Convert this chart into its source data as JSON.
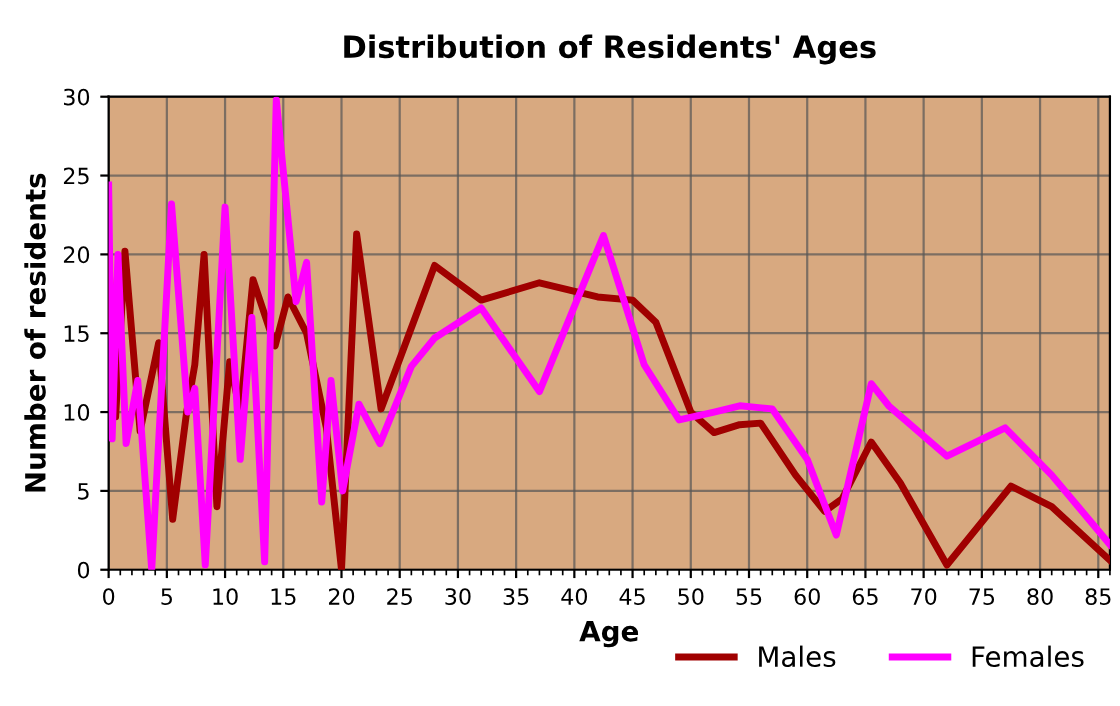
{
  "chart_data": {
    "type": "line",
    "title": "Distribution of Residents' Ages",
    "xlabel": "Age",
    "ylabel": "Number of residents",
    "xlim": [
      0,
      86
    ],
    "ylim": [
      0,
      30
    ],
    "xticks": [
      0,
      5,
      10,
      15,
      20,
      25,
      30,
      35,
      40,
      45,
      50,
      55,
      60,
      65,
      70,
      75,
      80,
      85
    ],
    "yticks": [
      0,
      5,
      10,
      15,
      20,
      25,
      30
    ],
    "grid": true,
    "legend": "bottom right",
    "marker": "none",
    "line_style": "solid",
    "series": [
      {
        "name": "Males",
        "color": "#a00000",
        "x": [
          0,
          0.6,
          1.4,
          2.7,
          4.3,
          5.5,
          6.7,
          7.4,
          8.2,
          9.3,
          10.4,
          11.3,
          12.4,
          14.3,
          15.4,
          17,
          18.7,
          20,
          21.3,
          23.4,
          28,
          32,
          37,
          42,
          45,
          47,
          50,
          52,
          54.2,
          56,
          59,
          61.5,
          63,
          65.5,
          68,
          72,
          77.5,
          81,
          86
        ],
        "values": [
          19.9,
          9.7,
          20.2,
          8.8,
          14.4,
          3.2,
          10,
          13,
          20,
          4,
          13.2,
          10,
          18.4,
          14.2,
          17.3,
          15,
          9,
          0,
          21.3,
          10.2,
          19.3,
          17.1,
          18.2,
          17.3,
          17.1,
          15.7,
          10,
          8.7,
          9.2,
          9.3,
          6,
          3.7,
          4.5,
          8.1,
          5.5,
          0.3,
          5.3,
          4,
          0.6
        ]
      },
      {
        "name": "Females",
        "color": "#ff00ff",
        "x": [
          0,
          0.3,
          0.8,
          1.5,
          2.5,
          3.7,
          5.4,
          6.8,
          7.4,
          8.3,
          10,
          11.3,
          12.3,
          13.4,
          14.4,
          16.1,
          17,
          18.3,
          19.1,
          20.1,
          21.5,
          23.3,
          26,
          28,
          32,
          37,
          42.5,
          46,
          49,
          52,
          54.2,
          57,
          60,
          62.5,
          65.5,
          67,
          72,
          77,
          81,
          86
        ],
        "values": [
          24.4,
          8.3,
          20,
          8,
          12,
          0,
          23.2,
          10,
          11.5,
          0.3,
          23,
          7,
          16,
          0.5,
          29.8,
          17,
          19.5,
          4.3,
          12,
          5,
          10.5,
          8,
          12.9,
          14.7,
          16.6,
          11.3,
          21.2,
          13,
          9.5,
          10,
          10.4,
          10.2,
          7,
          2.2,
          11.8,
          10.4,
          7.2,
          9,
          6,
          1.6
        ]
      }
    ]
  }
}
